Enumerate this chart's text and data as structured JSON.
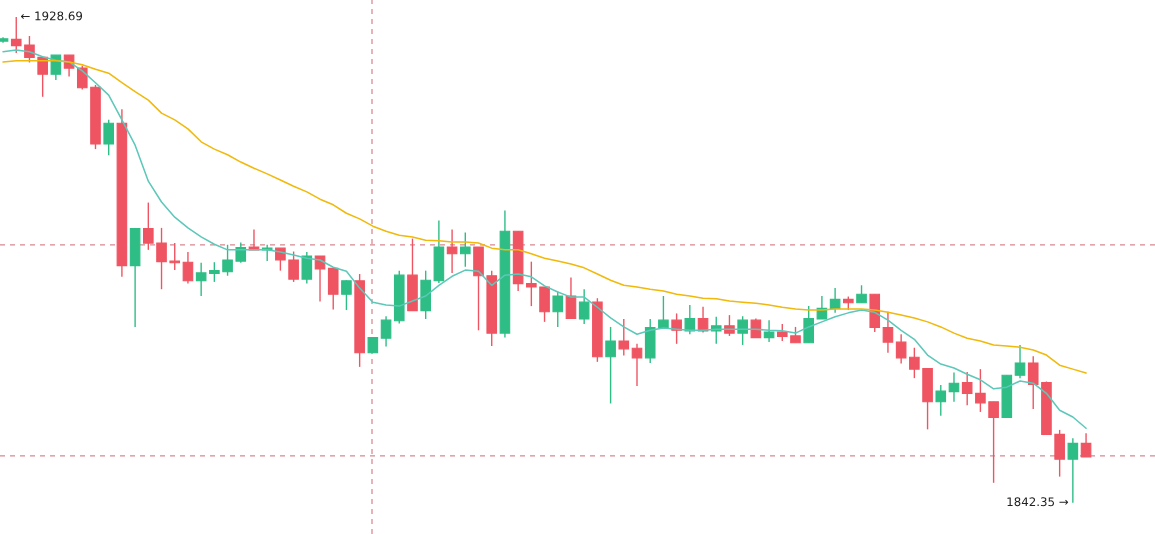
{
  "chart_data": {
    "type": "candlestick",
    "categories": [
      null,
      null,
      null,
      null,
      null,
      null,
      null,
      null,
      null,
      null,
      null,
      null,
      null,
      null,
      null,
      null,
      null,
      null,
      null,
      null,
      null,
      null,
      null,
      null,
      null,
      null,
      null,
      null,
      null,
      null,
      null,
      null,
      null,
      null,
      null,
      null,
      null,
      null,
      null,
      null,
      null,
      null,
      null,
      null,
      null,
      null,
      null,
      null,
      null,
      null,
      null,
      null,
      null,
      null,
      null,
      null,
      null,
      null,
      null,
      null,
      null,
      null,
      null,
      null,
      null,
      null,
      null,
      null,
      null,
      null,
      null,
      null,
      null,
      null,
      null,
      null,
      null,
      null,
      null,
      null,
      null,
      null,
      null
    ],
    "ohlc": [
      [
        1924.4,
        1925.1,
        1924.1,
        1924.8
      ],
      [
        1924.7,
        1928.69,
        1922.3,
        1923.6
      ],
      [
        1923.7,
        1925.3,
        1920.6,
        1921.5
      ],
      [
        1921.5,
        1921.6,
        1914.5,
        1918.5
      ],
      [
        1918.5,
        1921.9,
        1917.5,
        1921.9
      ],
      [
        1921.9,
        1921.9,
        1918.1,
        1919.6
      ],
      [
        1919.6,
        1920.0,
        1915.8,
        1916.1
      ],
      [
        1916.2,
        1916.6,
        1905.2,
        1906.1
      ],
      [
        1906.1,
        1910.4,
        1904.1,
        1909.8
      ],
      [
        1909.8,
        1912.3,
        1882.5,
        1884.5
      ],
      [
        1884.5,
        1891.1,
        1873.6,
        1891.1
      ],
      [
        1891.1,
        1895.7,
        1887.3,
        1888.5
      ],
      [
        1888.5,
        1891.2,
        1880.3,
        1885.2
      ],
      [
        1885.3,
        1888.5,
        1883.7,
        1885.0
      ],
      [
        1885.1,
        1886.9,
        1881.3,
        1881.8
      ],
      [
        1881.8,
        1885.0,
        1879.1,
        1883.2
      ],
      [
        1883.1,
        1885.1,
        1881.6,
        1883.6
      ],
      [
        1883.4,
        1888.2,
        1882.7,
        1885.5
      ],
      [
        1885.3,
        1888.6,
        1885.0,
        1887.7
      ],
      [
        1887.8,
        1890.9,
        1887.3,
        1887.3
      ],
      [
        1887.3,
        1888.2,
        1885.3,
        1887.6
      ],
      [
        1887.6,
        1887.6,
        1883.6,
        1885.5
      ],
      [
        1885.5,
        1887.0,
        1881.6,
        1882.1
      ],
      [
        1882.1,
        1886.9,
        1881.3,
        1886.2
      ],
      [
        1886.2,
        1886.2,
        1878.1,
        1883.9
      ],
      [
        1884.0,
        1884.0,
        1876.7,
        1879.4
      ],
      [
        1879.4,
        1881.9,
        1876.6,
        1881.8
      ],
      [
        1881.8,
        1883.0,
        1866.5,
        1869.0
      ],
      [
        1869.0,
        1871.7,
        1869.0,
        1871.7
      ],
      [
        1871.6,
        1875.5,
        1870.1,
        1874.8
      ],
      [
        1874.7,
        1883.6,
        1874.2,
        1882.8
      ],
      [
        1882.8,
        1889.3,
        1876.5,
        1876.5
      ],
      [
        1876.5,
        1883.6,
        1875.0,
        1881.9
      ],
      [
        1881.8,
        1892.5,
        1881.4,
        1887.8
      ],
      [
        1887.8,
        1890.9,
        1883.2,
        1886.6
      ],
      [
        1886.6,
        1890.4,
        1884.3,
        1887.8
      ],
      [
        1887.8,
        1887.8,
        1873.0,
        1882.7
      ],
      [
        1882.7,
        1883.6,
        1870.2,
        1872.5
      ],
      [
        1872.5,
        1894.3,
        1871.7,
        1890.6
      ],
      [
        1890.6,
        1890.6,
        1880.0,
        1881.3
      ],
      [
        1881.3,
        1885.2,
        1877.3,
        1880.7
      ],
      [
        1880.7,
        1880.7,
        1874.5,
        1876.3
      ],
      [
        1876.3,
        1879.9,
        1873.6,
        1879.1
      ],
      [
        1879.1,
        1882.4,
        1875.0,
        1875.1
      ],
      [
        1875.0,
        1880.3,
        1874.1,
        1878.0
      ],
      [
        1878.0,
        1878.7,
        1867.4,
        1868.3
      ],
      [
        1868.3,
        1873.6,
        1860.0,
        1871.1
      ],
      [
        1871.1,
        1875.0,
        1868.5,
        1869.7
      ],
      [
        1869.8,
        1870.6,
        1863.1,
        1868.1
      ],
      [
        1868.1,
        1875.0,
        1867.2,
        1873.5
      ],
      [
        1873.5,
        1879.1,
        1873.5,
        1874.8
      ],
      [
        1874.8,
        1876.0,
        1870.6,
        1873.0
      ],
      [
        1872.9,
        1877.5,
        1872.3,
        1875.1
      ],
      [
        1875.1,
        1877.2,
        1872.6,
        1872.9
      ],
      [
        1872.9,
        1875.4,
        1870.6,
        1873.8
      ],
      [
        1873.8,
        1875.7,
        1872.0,
        1872.5
      ],
      [
        1872.5,
        1875.5,
        1870.4,
        1874.8
      ],
      [
        1874.8,
        1875.1,
        1871.7,
        1871.7
      ],
      [
        1871.7,
        1874.8,
        1870.9,
        1872.7
      ],
      [
        1872.7,
        1874.1,
        1871.1,
        1871.9
      ],
      [
        1872.0,
        1873.6,
        1870.8,
        1870.8
      ],
      [
        1870.8,
        1877.3,
        1870.8,
        1875.1
      ],
      [
        1875.0,
        1879.1,
        1875.0,
        1876.9
      ],
      [
        1876.9,
        1880.5,
        1876.1,
        1878.5
      ],
      [
        1878.5,
        1879.0,
        1876.6,
        1877.9
      ],
      [
        1877.9,
        1881.0,
        1877.9,
        1879.4
      ],
      [
        1879.4,
        1879.4,
        1872.7,
        1873.5
      ],
      [
        1873.5,
        1876.3,
        1869.0,
        1870.9
      ],
      [
        1870.9,
        1872.3,
        1867.1,
        1868.1
      ],
      [
        1868.2,
        1869.9,
        1864.5,
        1866.1
      ],
      [
        1866.2,
        1866.2,
        1855.4,
        1860.3
      ],
      [
        1860.3,
        1863.3,
        1857.8,
        1862.2
      ],
      [
        1862.1,
        1865.5,
        1860.3,
        1863.6
      ],
      [
        1863.7,
        1865.6,
        1859.7,
        1861.8
      ],
      [
        1861.8,
        1866.1,
        1858.5,
        1860.1
      ],
      [
        1860.3,
        1860.3,
        1845.9,
        1857.5
      ],
      [
        1857.5,
        1865.0,
        1857.5,
        1865.0
      ],
      [
        1865.0,
        1870.4,
        1864.5,
        1867.2
      ],
      [
        1867.2,
        1868.4,
        1859.0,
        1863.4
      ],
      [
        1863.7,
        1863.9,
        1854.5,
        1854.5
      ],
      [
        1854.5,
        1855.3,
        1847.0,
        1850.1
      ],
      [
        1850.1,
        1853.8,
        1842.35,
        1852.9
      ],
      [
        1852.9,
        1854.7,
        1850.5,
        1850.5
      ]
    ],
    "colors": [
      "#2ebd85",
      "#ef5462",
      "#ef5462",
      "#ef5462",
      "#2ebd85",
      "#ef5462",
      "#ef5462",
      "#ef5462",
      "#2ebd85",
      "#ef5462",
      "#2ebd85",
      "#ef5462",
      "#ef5462",
      "#ef5462",
      "#ef5462",
      "#2ebd85",
      "#2ebd85",
      "#2ebd85",
      "#2ebd85",
      "#ef5462",
      "#2ebd85",
      "#ef5462",
      "#ef5462",
      "#2ebd85",
      "#ef5462",
      "#ef5462",
      "#2ebd85",
      "#ef5462",
      "#2ebd85",
      "#2ebd85",
      "#2ebd85",
      "#ef5462",
      "#2ebd85",
      "#2ebd85",
      "#ef5462",
      "#2ebd85",
      "#ef5462",
      "#ef5462",
      "#2ebd85",
      "#ef5462",
      "#ef5462",
      "#ef5462",
      "#2ebd85",
      "#ef5462",
      "#2ebd85",
      "#ef5462",
      "#2ebd85",
      "#ef5462",
      "#ef5462",
      "#2ebd85",
      "#2ebd85",
      "#ef5462",
      "#2ebd85",
      "#ef5462",
      "#2ebd85",
      "#ef5462",
      "#2ebd85",
      "#ef5462",
      "#2ebd85",
      "#ef5462",
      "#ef5462",
      "#2ebd85",
      "#2ebd85",
      "#2ebd85",
      "#ef5462",
      "#2ebd85",
      "#ef5462",
      "#ef5462",
      "#ef5462",
      "#ef5462",
      "#ef5462",
      "#2ebd85",
      "#2ebd85",
      "#ef5462",
      "#ef5462",
      "#ef5462",
      "#2ebd85",
      "#2ebd85",
      "#ef5462",
      "#ef5462",
      "#ef5462",
      "#2ebd85",
      "#ef5462"
    ],
    "series": [
      {
        "type": "line",
        "color": "#5cc8b9",
        "values": [
          1922.5,
          1922.8,
          1922.5,
          1921.6,
          1921.0,
          1920.7,
          1919.1,
          1917.0,
          1914.8,
          1910.4,
          1905.9,
          1899.5,
          1895.8,
          1893.1,
          1891.2,
          1889.6,
          1888.3,
          1887.3,
          1887.3,
          1887.3,
          1887.3,
          1886.9,
          1886.4,
          1885.8,
          1885.5,
          1884.2,
          1883.5,
          1880.5,
          1878.0,
          1877.5,
          1877.3,
          1878.2,
          1879.1,
          1881.0,
          1882.6,
          1883.7,
          1883.5,
          1881.0,
          1882.8,
          1883.0,
          1882.5,
          1880.9,
          1879.8,
          1878.9,
          1878.9,
          1877.1,
          1875.2,
          1873.6,
          1872.3,
          1873.0,
          1873.4,
          1873.2,
          1873.0,
          1873.0,
          1873.2,
          1873.2,
          1873.2,
          1873.2,
          1873.0,
          1872.9,
          1872.5,
          1873.6,
          1874.5,
          1875.4,
          1876.1,
          1876.6,
          1876.2,
          1874.8,
          1873.0,
          1871.4,
          1868.6,
          1867.0,
          1866.3,
          1865.2,
          1864.2,
          1862.6,
          1862.9,
          1864.0,
          1863.6,
          1861.8,
          1858.8,
          1857.6,
          1855.6
        ]
      },
      {
        "type": "line",
        "color": "#f0b90b",
        "values": [
          1920.7,
          1920.9,
          1920.9,
          1920.9,
          1920.9,
          1920.7,
          1920.2,
          1919.4,
          1918.7,
          1917.0,
          1915.4,
          1913.9,
          1911.6,
          1910.4,
          1908.8,
          1906.5,
          1905.2,
          1904.2,
          1902.9,
          1901.8,
          1900.8,
          1899.7,
          1898.6,
          1897.6,
          1896.3,
          1895.3,
          1893.8,
          1892.8,
          1891.5,
          1890.6,
          1889.9,
          1889.6,
          1889.0,
          1888.9,
          1888.7,
          1888.7,
          1888.5,
          1887.6,
          1887.3,
          1887.3,
          1886.6,
          1885.8,
          1885.3,
          1884.8,
          1884.1,
          1883.0,
          1881.9,
          1881.0,
          1880.7,
          1880.3,
          1880.0,
          1879.4,
          1879.1,
          1878.7,
          1878.6,
          1878.2,
          1878.0,
          1877.8,
          1877.5,
          1877.1,
          1876.8,
          1876.6,
          1876.6,
          1876.8,
          1876.8,
          1876.8,
          1876.6,
          1876.2,
          1875.7,
          1875.2,
          1874.5,
          1873.6,
          1872.5,
          1871.6,
          1871.1,
          1870.4,
          1870.2,
          1870.0,
          1869.5,
          1868.6,
          1866.8,
          1866.1,
          1865.4
        ]
      }
    ],
    "ylim": [
      1836.8,
      1931.7
    ],
    "ref_lines": [
      {
        "axis": "y",
        "value": 1888.2,
        "color": "#d98790",
        "line_style": "dashed"
      },
      {
        "axis": "y",
        "value": 1850.7,
        "color": "#d98790",
        "line_style": "dashed"
      }
    ],
    "annotations": [
      "← 1928.69",
      "1842.35 →"
    ]
  }
}
